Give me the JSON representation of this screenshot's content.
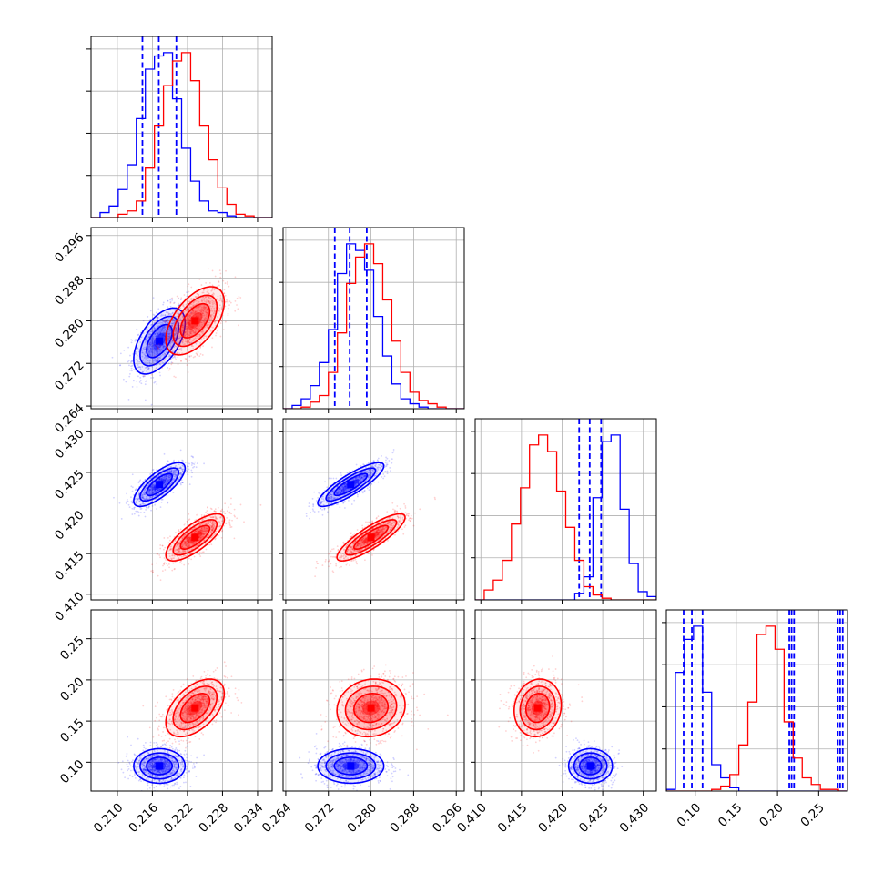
{
  "chart_data": {
    "type": "corner",
    "title": "",
    "grid": true,
    "parameters": [
      {
        "range": [
          0.2055,
          0.2365
        ],
        "ticks": [
          "0.210",
          "0.216",
          "0.222",
          "0.228",
          "0.234"
        ]
      },
      {
        "range": [
          0.2635,
          0.2975
        ],
        "ticks": [
          "0.264",
          "0.272",
          "0.280",
          "0.288",
          "0.296"
        ]
      },
      {
        "range": [
          0.4093,
          0.4316
        ],
        "ticks": [
          "0.410",
          "0.415",
          "0.420",
          "0.425",
          "0.430"
        ]
      },
      {
        "range": [
          0.065,
          0.285
        ],
        "ticks": [
          "0.10",
          "0.15",
          "0.20",
          "0.25"
        ]
      }
    ],
    "series": [
      {
        "color": "#0000ff",
        "means": [
          0.2172,
          0.2762,
          0.4235,
          0.0955
        ],
        "sigmas": [
          0.0022,
          0.0031,
          0.00135,
          0.0105
        ],
        "correlations": [
          [
            1,
            0.55,
            0.75,
            0.0
          ],
          [
            0.55,
            1,
            0.85,
            0.0
          ],
          [
            0.75,
            0.85,
            1,
            0.0
          ],
          [
            0.0,
            0.0,
            0.0,
            1
          ]
        ],
        "quantile_lines": [
          [
            0.2143,
            0.2171,
            0.2201
          ],
          [
            0.2732,
            0.276,
            0.2792
          ],
          [
            0.4221,
            0.4234,
            0.4248
          ],
          [
            0.086,
            0.096,
            0.109
          ]
        ],
        "histograms": [
          [
            0.0,
            0.03,
            0.07,
            0.17,
            0.32,
            0.6,
            0.9,
            0.98,
            1.0,
            0.72,
            0.42,
            0.22,
            0.1,
            0.04,
            0.03,
            0.01,
            0.0,
            0.0,
            0.0,
            0.0
          ],
          [
            0.0,
            0.02,
            0.06,
            0.14,
            0.28,
            0.48,
            0.82,
            1.0,
            0.96,
            0.84,
            0.56,
            0.32,
            0.15,
            0.06,
            0.03,
            0.01,
            0.0,
            0.0,
            0.0,
            0.0
          ],
          [
            0.0,
            0.0,
            0.0,
            0.0,
            0.0,
            0.0,
            0.0,
            0.0,
            0.0,
            0.0,
            0.0,
            0.04,
            0.14,
            0.62,
            0.96,
            1.0,
            0.55,
            0.22,
            0.05,
            0.02
          ],
          [
            0.01,
            0.72,
            0.92,
            1.0,
            0.6,
            0.16,
            0.08,
            0.02,
            0.0,
            0.0,
            0.0,
            0.0,
            0.0,
            0.0,
            0.0,
            0.0,
            0.0,
            0.0,
            0.0,
            0.0
          ]
        ]
      },
      {
        "color": "#ff0000",
        "means": [
          0.2233,
          0.28,
          0.417,
          0.166
        ],
        "sigmas": [
          0.0025,
          0.0032,
          0.00145,
          0.0175
        ],
        "correlations": [
          [
            1,
            0.55,
            0.75,
            0.5
          ],
          [
            0.55,
            1,
            0.85,
            0.1
          ],
          [
            0.75,
            0.85,
            1,
            0.1
          ],
          [
            0.5,
            0.1,
            0.1,
            1
          ]
        ],
        "quantile_lines": [],
        "histograms": [
          [
            0.0,
            0.0,
            0.0,
            0.02,
            0.04,
            0.1,
            0.3,
            0.56,
            0.8,
            0.95,
            1.0,
            0.83,
            0.56,
            0.35,
            0.18,
            0.08,
            0.02,
            0.01,
            0.0,
            0.0
          ],
          [
            0.0,
            0.0,
            0.01,
            0.04,
            0.08,
            0.22,
            0.46,
            0.76,
            0.92,
            1.0,
            0.88,
            0.66,
            0.41,
            0.22,
            0.1,
            0.05,
            0.03,
            0.01,
            0.0,
            0.0
          ],
          [
            0.0,
            0.06,
            0.12,
            0.24,
            0.46,
            0.68,
            0.94,
            1.0,
            0.9,
            0.66,
            0.44,
            0.24,
            0.08,
            0.03,
            0.01,
            0.0,
            0.0,
            0.0,
            0.0,
            0.0
          ],
          [
            0.0,
            0.0,
            0.0,
            0.0,
            0.0,
            0.01,
            0.03,
            0.1,
            0.28,
            0.54,
            0.95,
            1.0,
            0.86,
            0.42,
            0.2,
            0.08,
            0.04,
            0.01,
            0.01,
            0.0
          ]
        ]
      }
    ]
  }
}
